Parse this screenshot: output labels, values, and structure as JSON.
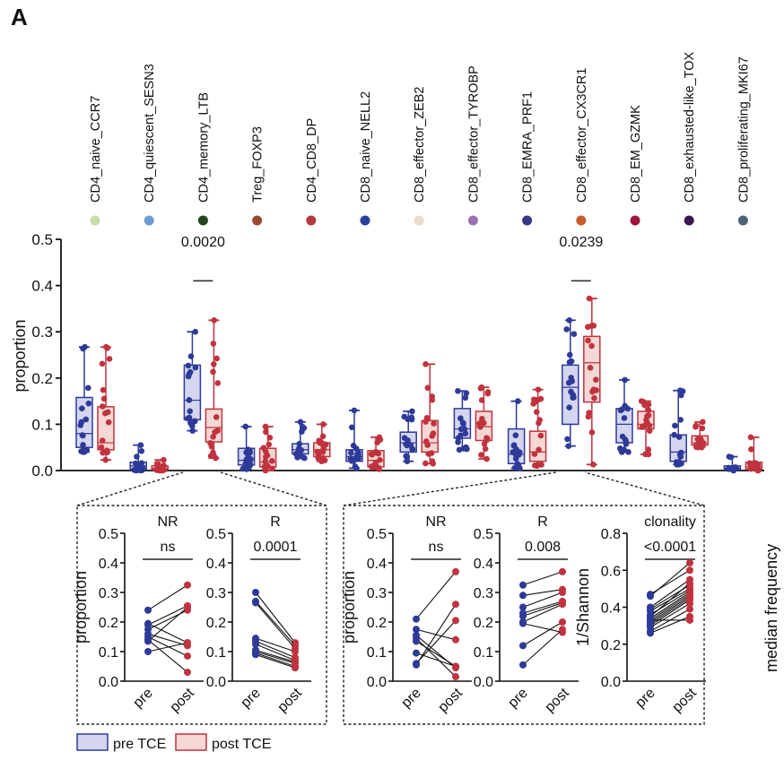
{
  "panel_label": "A",
  "legend": {
    "items": [
      {
        "label": "pre TCE",
        "fill": "#d4d5ef",
        "stroke": "#2e3a98"
      },
      {
        "label": "post TCE",
        "fill": "#f3d8d4",
        "stroke": "#c0333e"
      }
    ]
  },
  "colors": {
    "pre": "#2e3a98",
    "post": "#c0333e",
    "pre_fill": "#d4d5ef",
    "post_fill": "#f3d8d4",
    "pair_line": "#111111"
  },
  "chart_data": [
    {
      "type": "box",
      "title": "",
      "ylabel": "proportion",
      "xlabel": "",
      "ylim": [
        0,
        0.5
      ],
      "yticks": [
        "0.0",
        "0.1",
        "0.2",
        "0.3",
        "0.4",
        "0.5"
      ],
      "grid": false,
      "legend_position": "bottom-left",
      "categories": [
        {
          "name": "CD4_naive_CCR7",
          "dot_color": "#c8dca6"
        },
        {
          "name": "CD4_quiescent_SESN3",
          "dot_color": "#6a9bd2"
        },
        {
          "name": "CD4_memory_LTB",
          "dot_color": "#23441f"
        },
        {
          "name": "Treg_FOXP3",
          "dot_color": "#9a4b2e"
        },
        {
          "name": "CD4_CD8_DP",
          "dot_color": "#b23a3c"
        },
        {
          "name": "CD8_naive_NELL2",
          "dot_color": "#27409a"
        },
        {
          "name": "CD8_effector_ZEB2",
          "dot_color": "#eadccb"
        },
        {
          "name": "CD8_effector_TYROBP",
          "dot_color": "#9b6fb5"
        },
        {
          "name": "CD8_EMRA_PRF1",
          "dot_color": "#3a3486"
        },
        {
          "name": "CD8_effector_CX3CR1",
          "dot_color": "#c9582a"
        },
        {
          "name": "CD8_EM_GZMK",
          "dot_color": "#a0153e"
        },
        {
          "name": "CD8_exhausted-like_TOX",
          "dot_color": "#3d1552"
        },
        {
          "name": "CD8_proliferating_MKI67",
          "dot_color": "#4d6478"
        }
      ],
      "series": [
        {
          "name": "pre TCE",
          "boxes": [
            {
              "min": 0.04,
              "q1": 0.05,
              "median": 0.08,
              "q3": 0.158,
              "max": 0.267
            },
            {
              "min": 0.0,
              "q1": 0.002,
              "median": 0.01,
              "q3": 0.018,
              "max": 0.055
            },
            {
              "min": 0.086,
              "q1": 0.11,
              "median": 0.152,
              "q3": 0.228,
              "max": 0.3
            },
            {
              "min": 0.003,
              "q1": 0.012,
              "median": 0.022,
              "q3": 0.048,
              "max": 0.095
            },
            {
              "min": 0.027,
              "q1": 0.036,
              "median": 0.045,
              "q3": 0.058,
              "max": 0.105
            },
            {
              "min": 0.005,
              "q1": 0.02,
              "median": 0.03,
              "q3": 0.045,
              "max": 0.13
            },
            {
              "min": 0.02,
              "q1": 0.04,
              "median": 0.06,
              "q3": 0.083,
              "max": 0.128
            },
            {
              "min": 0.045,
              "q1": 0.07,
              "median": 0.09,
              "q3": 0.134,
              "max": 0.172
            },
            {
              "min": 0.005,
              "q1": 0.015,
              "median": 0.035,
              "q3": 0.09,
              "max": 0.15
            },
            {
              "min": 0.053,
              "q1": 0.1,
              "median": 0.18,
              "q3": 0.228,
              "max": 0.325
            },
            {
              "min": 0.04,
              "q1": 0.06,
              "median": 0.1,
              "q3": 0.134,
              "max": 0.196
            },
            {
              "min": 0.013,
              "q1": 0.02,
              "median": 0.04,
              "q3": 0.077,
              "max": 0.173
            },
            {
              "min": 0.0,
              "q1": 0.002,
              "median": 0.005,
              "q3": 0.01,
              "max": 0.03
            }
          ]
        },
        {
          "name": "post TCE",
          "boxes": [
            {
              "min": 0.023,
              "q1": 0.045,
              "median": 0.06,
              "q3": 0.138,
              "max": 0.267
            },
            {
              "min": 0.0,
              "q1": 0.002,
              "median": 0.005,
              "q3": 0.01,
              "max": 0.023
            },
            {
              "min": 0.027,
              "q1": 0.062,
              "median": 0.093,
              "q3": 0.133,
              "max": 0.325
            },
            {
              "min": 0.0,
              "q1": 0.008,
              "median": 0.018,
              "q3": 0.048,
              "max": 0.095
            },
            {
              "min": 0.02,
              "q1": 0.03,
              "median": 0.045,
              "q3": 0.06,
              "max": 0.1
            },
            {
              "min": 0.003,
              "q1": 0.008,
              "median": 0.022,
              "q3": 0.043,
              "max": 0.072
            },
            {
              "min": 0.015,
              "q1": 0.04,
              "median": 0.06,
              "q3": 0.108,
              "max": 0.23
            },
            {
              "min": 0.025,
              "q1": 0.065,
              "median": 0.095,
              "q3": 0.128,
              "max": 0.18
            },
            {
              "min": 0.01,
              "q1": 0.02,
              "median": 0.04,
              "q3": 0.085,
              "max": 0.175
            },
            {
              "min": 0.013,
              "q1": 0.148,
              "median": 0.233,
              "q3": 0.29,
              "max": 0.372
            },
            {
              "min": 0.035,
              "q1": 0.09,
              "median": 0.1,
              "q3": 0.128,
              "max": 0.15
            },
            {
              "min": 0.05,
              "q1": 0.055,
              "median": 0.06,
              "q3": 0.075,
              "max": 0.105
            },
            {
              "min": 0.0,
              "q1": 0.003,
              "median": 0.008,
              "q3": 0.018,
              "max": 0.072
            }
          ]
        }
      ],
      "annotations": [
        {
          "category": "CD4_memory_LTB",
          "text": "0.0020",
          "y": 0.465
        },
        {
          "category": "CD8_effector_CX3CR1",
          "text": "0.0239",
          "y": 0.465
        }
      ]
    },
    {
      "type": "line",
      "group": "CD4_memory_LTB",
      "title": "NR",
      "pvalue": "ns",
      "ylabel": "proportion",
      "xticks": [
        "pre",
        "post"
      ],
      "ylim": [
        0,
        0.5
      ],
      "yticks": [
        "0.0",
        "0.1",
        "0.2",
        "0.3",
        "0.4",
        "0.5"
      ],
      "pairs": [
        [
          0.24,
          0.325
        ],
        [
          0.19,
          0.255
        ],
        [
          0.175,
          0.24
        ],
        [
          0.16,
          0.12
        ],
        [
          0.195,
          0.13
        ],
        [
          0.135,
          0.25
        ],
        [
          0.1,
          0.13
        ],
        [
          0.15,
          0.085
        ],
        [
          0.14,
          0.03
        ]
      ]
    },
    {
      "type": "line",
      "group": "CD4_memory_LTB",
      "title": "R",
      "pvalue": "0.0001",
      "ylabel": "",
      "xticks": [
        "pre",
        "post"
      ],
      "ylim": [
        0,
        0.5
      ],
      "yticks": [
        "0.0",
        "0.1",
        "0.2",
        "0.3",
        "0.4",
        "0.5"
      ],
      "pairs": [
        [
          0.3,
          0.13
        ],
        [
          0.27,
          0.12
        ],
        [
          0.265,
          0.11
        ],
        [
          0.145,
          0.1
        ],
        [
          0.135,
          0.08
        ],
        [
          0.125,
          0.07
        ],
        [
          0.105,
          0.065
        ],
        [
          0.1,
          0.06
        ],
        [
          0.095,
          0.05
        ],
        [
          0.09,
          0.045
        ]
      ]
    },
    {
      "type": "line",
      "group": "CD8_effector_CX3CR1",
      "title": "NR",
      "pvalue": "ns",
      "ylabel": "proportion",
      "xticks": [
        "pre",
        "post"
      ],
      "ylim": [
        0,
        0.5
      ],
      "yticks": [
        "0.0",
        "0.1",
        "0.2",
        "0.3",
        "0.4",
        "0.5"
      ],
      "pairs": [
        [
          0.21,
          0.37
        ],
        [
          0.175,
          0.14
        ],
        [
          0.155,
          0.045
        ],
        [
          0.145,
          0.015
        ],
        [
          0.135,
          0.05
        ],
        [
          0.095,
          0.05
        ],
        [
          0.06,
          0.205
        ],
        [
          0.055,
          0.26
        ]
      ]
    },
    {
      "type": "line",
      "group": "CD8_effector_CX3CR1",
      "title": "R",
      "pvalue": "0.008",
      "ylabel": "",
      "xticks": [
        "pre",
        "post"
      ],
      "ylim": [
        0,
        0.5
      ],
      "yticks": [
        "0.0",
        "0.1",
        "0.2",
        "0.3",
        "0.4",
        "0.5"
      ],
      "pairs": [
        [
          0.325,
          0.37
        ],
        [
          0.29,
          0.31
        ],
        [
          0.25,
          0.3
        ],
        [
          0.23,
          0.27
        ],
        [
          0.22,
          0.265
        ],
        [
          0.2,
          0.26
        ],
        [
          0.195,
          0.165
        ],
        [
          0.12,
          0.2
        ],
        [
          0.055,
          0.175
        ]
      ]
    },
    {
      "type": "line",
      "group": "CD8_effector_CX3CR1",
      "title": "clonality",
      "pvalue": "<0.0001",
      "ylabel": "1/Shannon",
      "xticks": [
        "pre",
        "post"
      ],
      "ylim": [
        0,
        0.8
      ],
      "yticks": [
        "0.0",
        "0.2",
        "0.4",
        "0.6",
        "0.8"
      ],
      "pairs": [
        [
          0.47,
          0.6
        ],
        [
          0.46,
          0.64
        ],
        [
          0.4,
          0.55
        ],
        [
          0.39,
          0.52
        ],
        [
          0.38,
          0.5
        ],
        [
          0.34,
          0.48
        ],
        [
          0.33,
          0.47
        ],
        [
          0.32,
          0.46
        ],
        [
          0.31,
          0.45
        ],
        [
          0.3,
          0.44
        ],
        [
          0.29,
          0.42
        ],
        [
          0.27,
          0.39
        ],
        [
          0.26,
          0.35
        ],
        [
          0.33,
          0.33
        ],
        [
          0.35,
          0.53
        ],
        [
          0.36,
          0.49
        ]
      ]
    }
  ],
  "side_label": {
    "text": "median frequency"
  }
}
